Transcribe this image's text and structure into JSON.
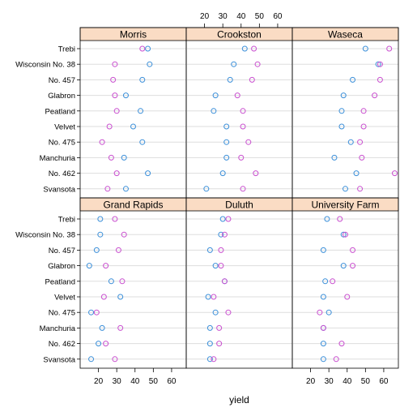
{
  "chart_data": {
    "type": "scatter",
    "xlabel": "yield",
    "xlim": [
      10,
      68
    ],
    "x_ticks": [
      20,
      30,
      40,
      50,
      60
    ],
    "colors": {
      "1931": "#3b8fd9",
      "1932": "#c94fcf",
      "strip_fill": "#fadcc4",
      "gridline": "#dddddd"
    },
    "varieties": [
      "Trebi",
      "Wisconsin No. 38",
      "No. 457",
      "Glabron",
      "Peatland",
      "Velvet",
      "No. 475",
      "Manchuria",
      "No. 462",
      "Svansota"
    ],
    "panels": [
      {
        "site": "Morris",
        "blue": [
          47,
          48,
          44,
          35,
          43,
          39,
          44,
          34,
          47,
          35
        ],
        "purple": [
          44,
          29,
          28,
          29,
          30,
          26,
          22,
          27,
          30,
          25
        ]
      },
      {
        "site": "Crookston",
        "blue": [
          42,
          36,
          34,
          26,
          25,
          32,
          32,
          32,
          30,
          21
        ],
        "purple": [
          47,
          49,
          46,
          38,
          41,
          41,
          44,
          40,
          48,
          41
        ]
      },
      {
        "site": "Waseca",
        "blue": [
          50,
          57,
          43,
          38,
          37,
          37,
          42,
          33,
          45,
          39
        ],
        "purple": [
          63,
          58,
          58,
          55,
          49,
          49,
          47,
          48,
          66,
          47
        ]
      },
      {
        "site": "Grand Rapids",
        "blue": [
          21,
          21,
          19,
          15,
          27,
          32,
          16,
          22,
          20,
          16
        ],
        "purple": [
          29,
          34,
          31,
          24,
          33,
          23,
          19,
          32,
          24,
          29
        ]
      },
      {
        "site": "Duluth",
        "blue": [
          30,
          29,
          23,
          26,
          31,
          22,
          26,
          23,
          23,
          23
        ],
        "purple": [
          33,
          31,
          29,
          29,
          31,
          25,
          33,
          28,
          28,
          25
        ]
      },
      {
        "site": "University Farm",
        "blue": [
          29,
          38,
          27,
          38,
          28,
          27,
          30,
          27,
          27,
          27
        ],
        "purple": [
          36,
          39,
          43,
          43,
          32,
          40,
          25,
          27,
          37,
          34
        ]
      }
    ]
  }
}
